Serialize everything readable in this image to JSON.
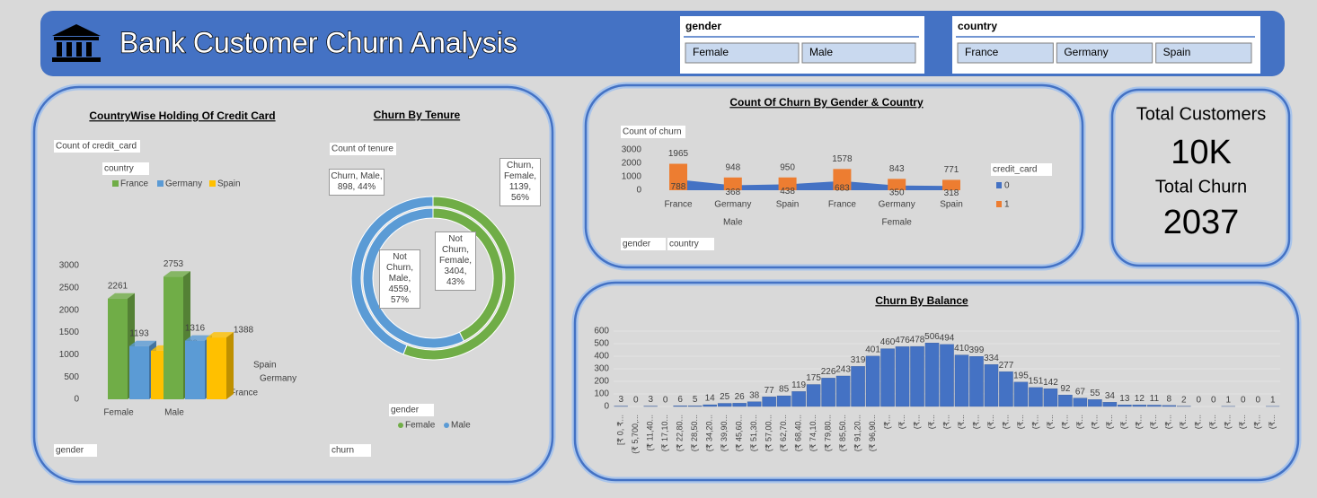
{
  "header": {
    "title": "Bank Customer Churn Analysis"
  },
  "slicers": [
    {
      "title": "gender",
      "items": [
        "Female",
        "Male"
      ]
    },
    {
      "title": "country",
      "items": [
        "France",
        "Germany",
        "Spain"
      ]
    }
  ],
  "kpi": {
    "total_customers": {
      "label": "Total Customers",
      "value": "10K"
    },
    "total_churn": {
      "label": "Total Churn",
      "value": 2037
    }
  },
  "chart_data": [
    {
      "type": "bar3d",
      "title": "CountryWise Holding Of Credit Card",
      "y_label": "Count of credit_card",
      "legend_title": "country",
      "x_label": "gender",
      "categories": [
        "Female",
        "Male"
      ],
      "series": [
        {
          "name": "France",
          "color": "#70ad47",
          "values": [
            2261,
            2753
          ]
        },
        {
          "name": "Germany",
          "color": "#5b9bd5",
          "values": [
            1193,
            1316
          ]
        },
        {
          "name": "Spain",
          "color": "#ffc000",
          "values": [
            1089,
            1388
          ]
        }
      ],
      "ylim": [
        0,
        3000
      ],
      "yticks": [
        0,
        500,
        1000,
        1500,
        2000,
        2500,
        3000
      ]
    },
    {
      "type": "doughnut",
      "title": "Churn By Tenure",
      "value_label": "Count of tenure",
      "legend_title": "gender",
      "ring_field": "churn",
      "series": [
        {
          "name": "Female",
          "color": "#70ad47"
        },
        {
          "name": "Male",
          "color": "#5b9bd5"
        }
      ],
      "rings": [
        {
          "values": [
            1139,
            898
          ],
          "value_labels": [
            "Churn, Female, 1139, 56%",
            "Churn, Male, 898, 44%"
          ]
        },
        {
          "values": [
            3404,
            4559
          ],
          "value_labels": [
            "Not Churn, Female, 3404, 43%",
            "Not Churn, Male, 4559, 57%"
          ]
        }
      ]
    },
    {
      "type": "combo",
      "title": "Count Of Churn By Gender & Country",
      "y_label": "Count of churn",
      "legend_title": "credit_card",
      "x_labels": [
        "gender",
        "country"
      ],
      "categories": [
        "France",
        "Germany",
        "Spain",
        "France",
        "Germany",
        "Spain"
      ],
      "groups": [
        "Male",
        "Female"
      ],
      "series": [
        {
          "name": "0",
          "color": "#4472c4",
          "mark": "area",
          "values": [
            788,
            368,
            438,
            683,
            350,
            318
          ]
        },
        {
          "name": "1",
          "color": "#ed7d31",
          "mark": "bar",
          "values": [
            1965,
            948,
            950,
            1578,
            843,
            771
          ]
        }
      ],
      "ylim": [
        0,
        3000
      ],
      "yticks": [
        0,
        1000,
        2000,
        3000
      ]
    },
    {
      "type": "bar",
      "title": "Churn By Balance",
      "color": "#4472c4",
      "grid": true,
      "categories": [
        "[₹ 0, ₹...",
        "(₹ 5,700,...",
        "(₹ 11,40...",
        "(₹ 17,10...",
        "(₹ 22,80...",
        "(₹ 28,50...",
        "(₹ 34,20...",
        "(₹ 39,90...",
        "(₹ 45,60...",
        "(₹ 51,30...",
        "(₹ 57,00...",
        "(₹ 62,70...",
        "(₹ 68,40...",
        "(₹ 74,10...",
        "(₹ 79,80...",
        "(₹ 85,50...",
        "(₹ 91,20...",
        "(₹ 96,90...",
        "(₹...",
        "(₹...",
        "(₹...",
        "(₹...",
        "(₹...",
        "(₹...",
        "(₹...",
        "(₹...",
        "(₹...",
        "(₹...",
        "(₹...",
        "(₹...",
        "(₹...",
        "(₹...",
        "(₹...",
        "(₹...",
        "(₹...",
        "(₹...",
        "(₹...",
        "(₹...",
        "(₹...",
        "(₹...",
        "(₹...",
        "(₹...",
        "(₹...",
        "(₹...",
        "(₹..."
      ],
      "values": [
        3,
        0,
        3,
        0,
        6,
        5,
        14,
        25,
        26,
        38,
        77,
        85,
        119,
        175,
        226,
        243,
        319,
        401,
        460,
        476,
        478,
        506,
        494,
        410,
        399,
        334,
        277,
        195,
        151,
        142,
        92,
        67,
        55,
        34,
        13,
        12,
        11,
        8,
        2,
        0,
        0,
        1,
        0,
        0,
        1
      ],
      "ylim": [
        0,
        600
      ],
      "yticks": [
        0,
        100,
        200,
        300,
        400,
        500,
        600
      ]
    }
  ]
}
